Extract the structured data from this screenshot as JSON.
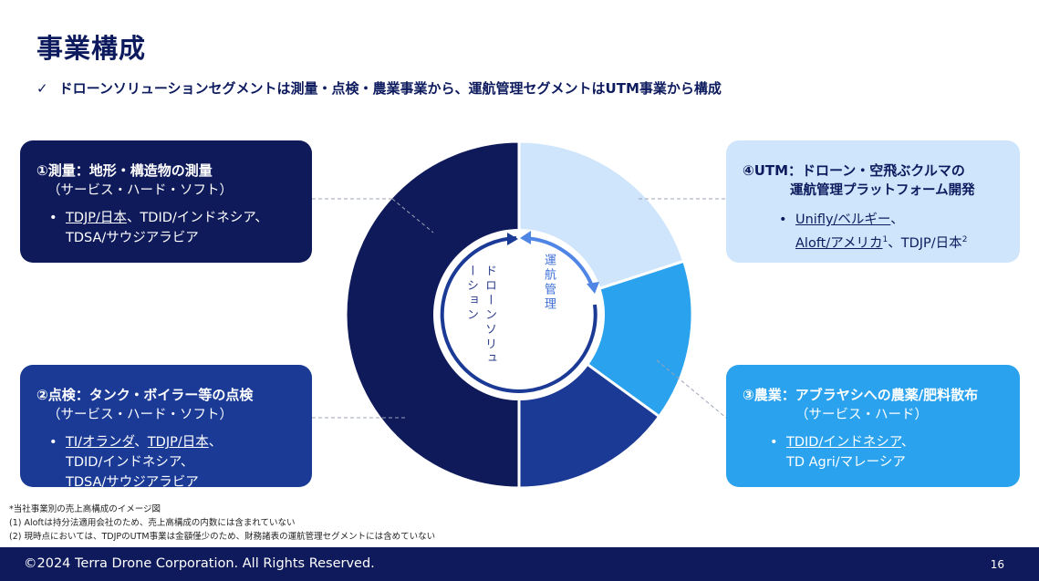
{
  "title": "事業構成",
  "subtitle": {
    "check": "✓",
    "text": "ドローンソリューションセグメントは測量・点検・農業事業から、運航管理セグメントはUTM事業から構成"
  },
  "boxes": {
    "survey": {
      "heading": "①測量：地形・構造物の測量",
      "sub": "（サービス・ハード・ソフト）",
      "bullet": "•",
      "line1_u": "TDJP/日本",
      "line1_rest": "、TDID/インドネシア、",
      "line2": "TDSA/サウジアラビア"
    },
    "inspection": {
      "heading": "②点検：タンク・ボイラー等の点検",
      "sub": "（サービス・ハード・ソフト）",
      "bullet": "•",
      "l1_u1": "TI/オランダ",
      "l1_sep": "、",
      "l1_u2": "TDJP/日本",
      "l1_end": "、",
      "line2": "TDID/インドネシア、",
      "line3": "TDSA/サウジアラビア"
    },
    "utm": {
      "heading1": "④UTM：ドローン・空飛ぶクルマの",
      "heading2": "運航管理プラットフォーム開発",
      "bullet": "•",
      "l1_u": "Unifly/ベルギー",
      "l1_end": "、",
      "l2_u": "Aloft/アメリカ",
      "l2_sup1": "1",
      "l2_rest": "、TDJP/日本",
      "l2_sup2": "2"
    },
    "agri": {
      "heading": "③農業：アブラヤシへの農薬/肥料散布",
      "sub": "（サービス・ハード）",
      "bullet": "•",
      "l1_u": "TDID/インドネシア",
      "l1_end": "、",
      "line2": "TD Agri/マレーシア"
    }
  },
  "center": {
    "drone_solution": "ドローンソリューション",
    "flight_mgmt": "運航管理"
  },
  "colors": {
    "survey": "#0f1a5a",
    "inspection": "#1a3a96",
    "agri": "#2aa2ee",
    "utm": "#cfe5fb",
    "arrow_dark": "#1a3a96",
    "arrow_light": "#4f86e6"
  },
  "chart_data": {
    "type": "pie",
    "categories": [
      "測量",
      "点検",
      "農業",
      "UTM"
    ],
    "values": [
      50,
      15,
      15,
      20
    ]
  },
  "notes": [
    "*当社事業別の売上高構成のイメージ図",
    "(1)  Aloftは持分法適用会社のため、売上高構成の内数には含まれていない",
    "(2)  現時点においては、TDJPのUTM事業は金額僅少のため、財務諸表の運航管理セグメントには含めていない"
  ],
  "footer": {
    "copyright": "©2024 Terra Drone Corporation. All Rights Reserved.",
    "page": "16"
  }
}
